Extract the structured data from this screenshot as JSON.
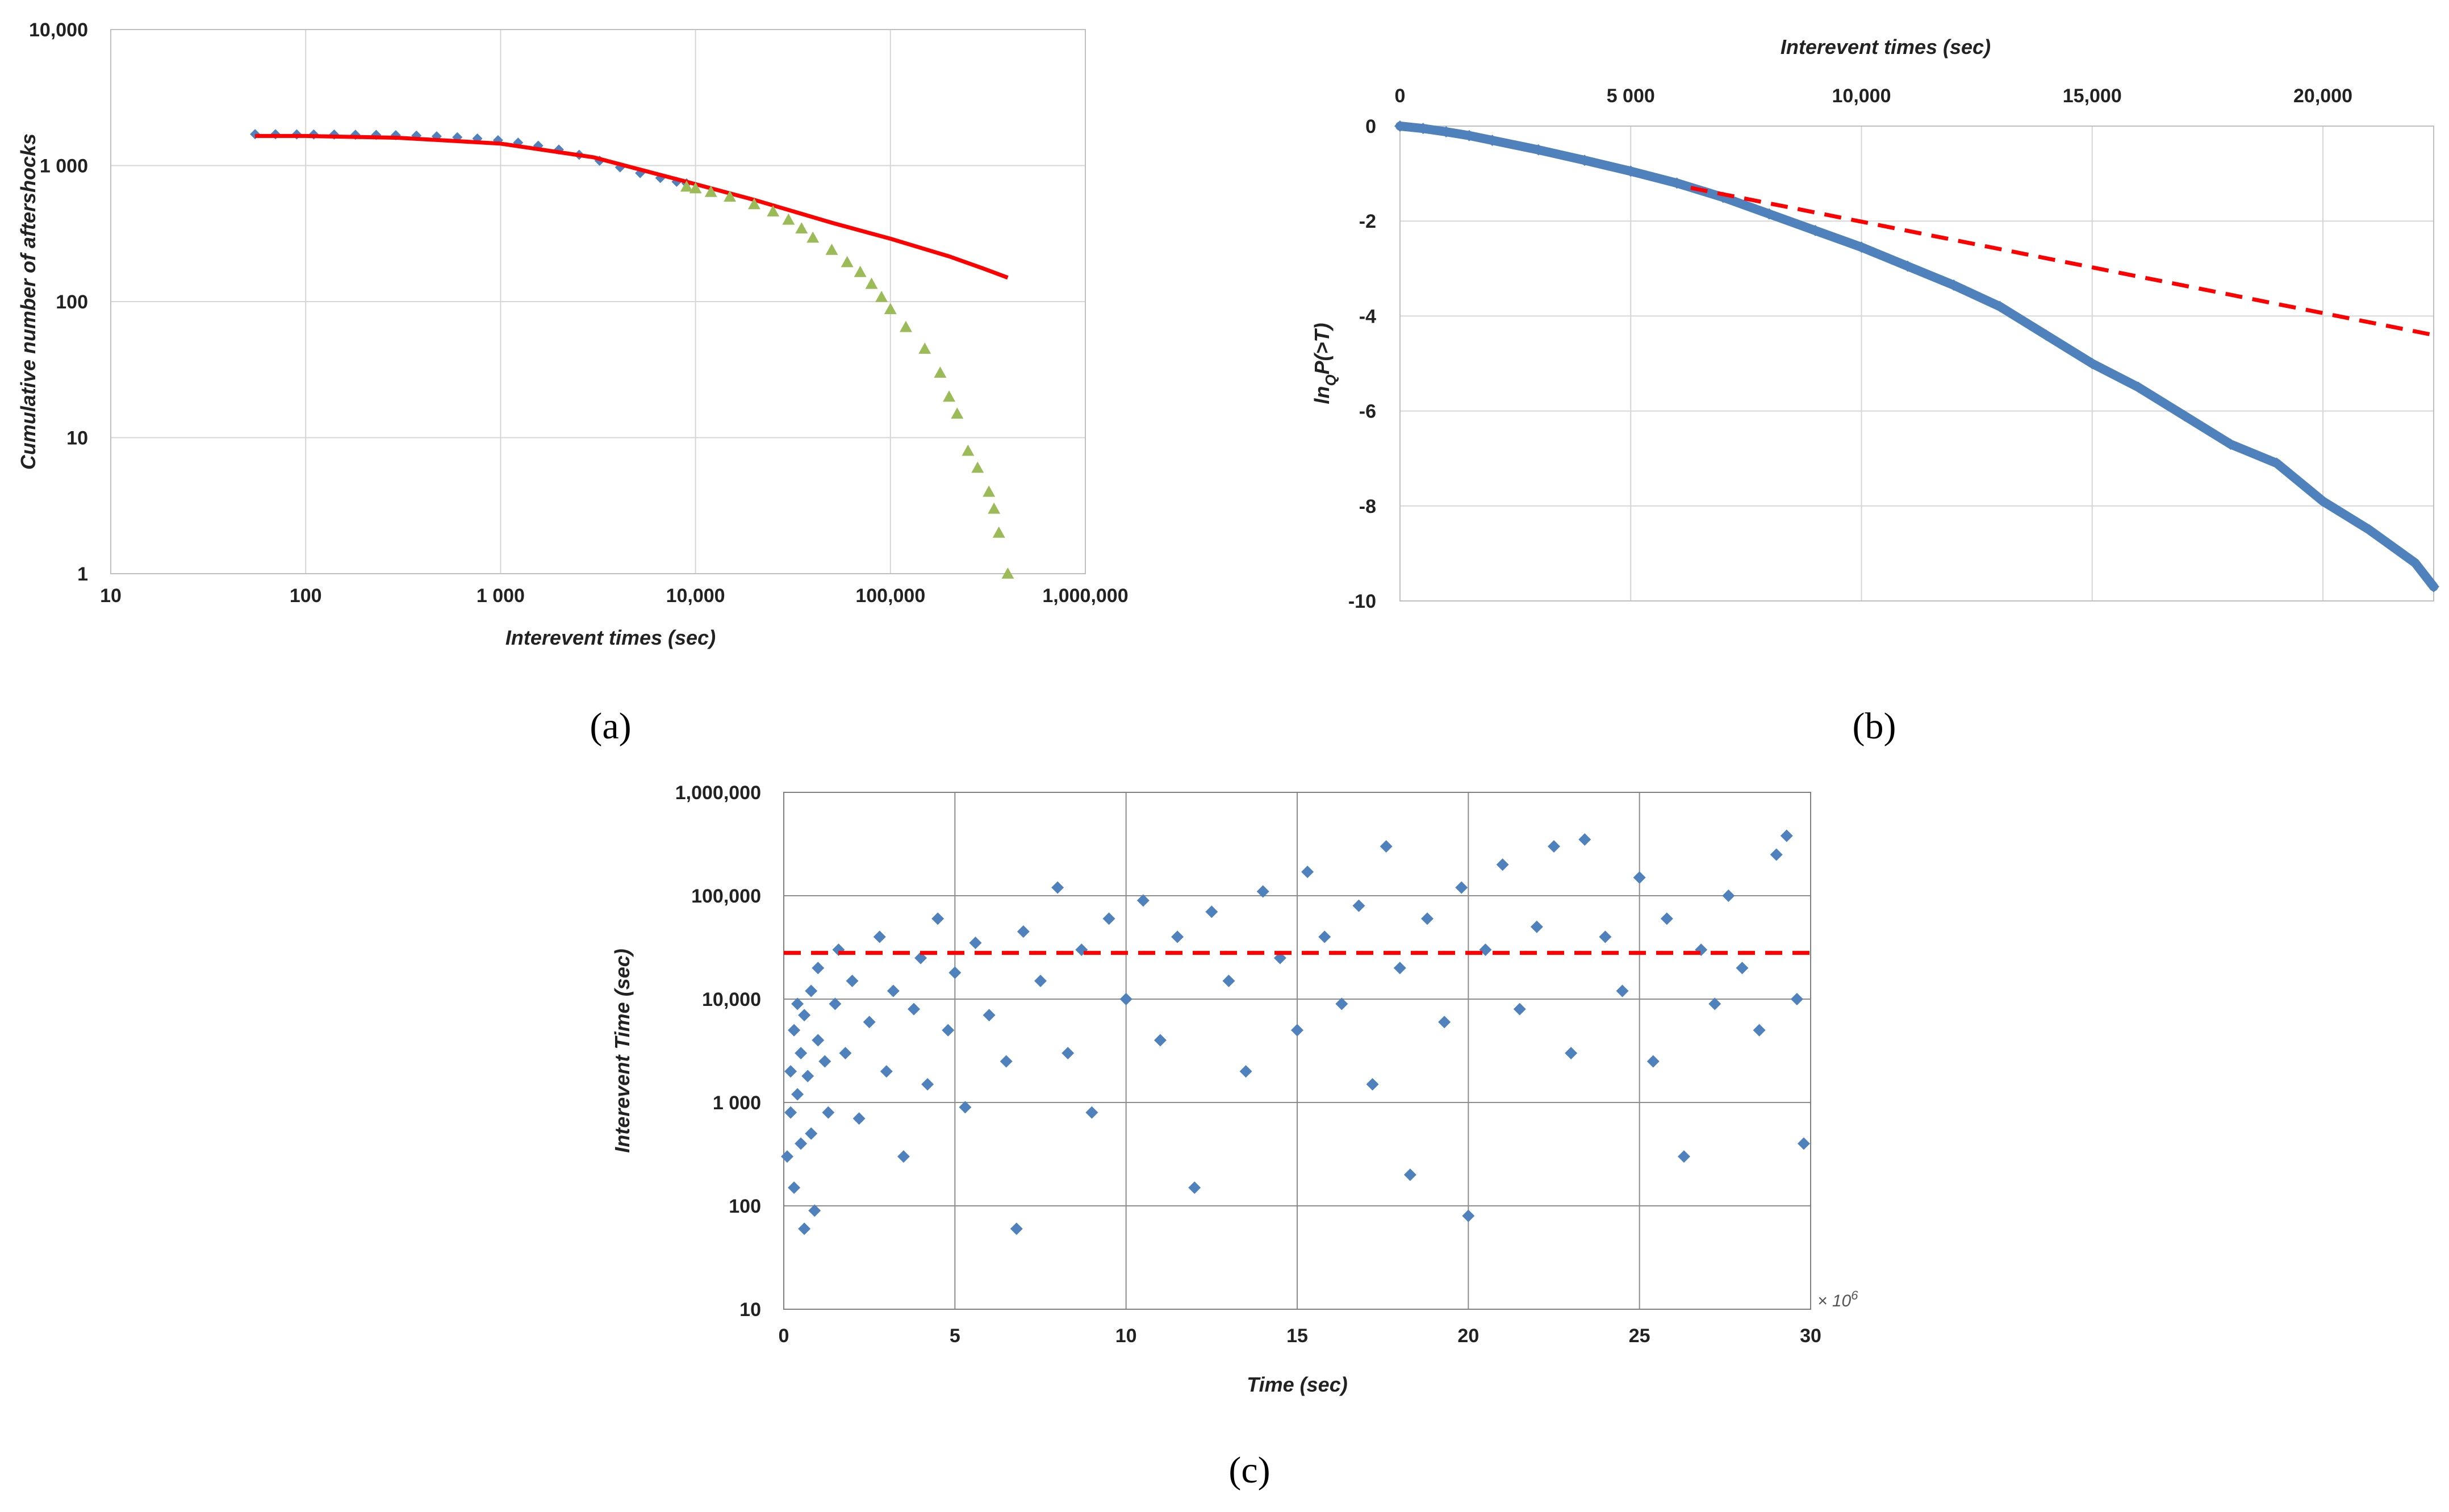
{
  "colors": {
    "blue": "#4f81bd",
    "red": "#ff0000",
    "green": "#9bbb59",
    "background": "#ffffff"
  },
  "chart_data": [
    {
      "id": "a",
      "panel_label": "(a)",
      "type": "scatter",
      "xlabel": "Interevent times (sec)",
      "ylabel": "Cumulative number of aftershocks",
      "x_scale": "log",
      "y_scale": "log",
      "xlim": [
        10,
        1000000
      ],
      "ylim": [
        1,
        10000
      ],
      "x_ticks": [
        "10",
        "100",
        "1 000",
        "10,000",
        "100,000",
        "1,000,000"
      ],
      "y_ticks": [
        "1",
        "10",
        "100",
        "1 000",
        "10,000"
      ],
      "grid": true,
      "legend": "none",
      "series": [
        {
          "marker": "diamond",
          "color": "#4f81bd",
          "points": [
            [
              55,
              1700
            ],
            [
              70,
              1698
            ],
            [
              90,
              1695
            ],
            [
              110,
              1693
            ],
            [
              140,
              1690
            ],
            [
              180,
              1685
            ],
            [
              230,
              1680
            ],
            [
              290,
              1672
            ],
            [
              370,
              1660
            ],
            [
              470,
              1640
            ],
            [
              600,
              1615
            ],
            [
              760,
              1580
            ],
            [
              970,
              1535
            ],
            [
              1230,
              1475
            ],
            [
              1560,
              1400
            ],
            [
              1990,
              1310
            ],
            [
              2530,
              1200
            ],
            [
              3220,
              1085
            ],
            [
              4100,
              970
            ],
            [
              5200,
              880
            ],
            [
              6600,
              810
            ],
            [
              8000,
              760
            ],
            [
              9000,
              740
            ]
          ]
        },
        {
          "marker": "line",
          "color": "#ff0000",
          "points": [
            [
              55,
              1650
            ],
            [
              100,
              1650
            ],
            [
              300,
              1600
            ],
            [
              1000,
              1450
            ],
            [
              3000,
              1150
            ],
            [
              9000,
              760
            ],
            [
              20000,
              560
            ],
            [
              50000,
              380
            ],
            [
              100000,
              290
            ],
            [
              200000,
              215
            ],
            [
              300000,
              175
            ],
            [
              400000,
              150
            ]
          ]
        },
        {
          "marker": "triangle",
          "color": "#9bbb59",
          "points": [
            [
              9000,
              700
            ],
            [
              10000,
              680
            ],
            [
              12000,
              640
            ],
            [
              15000,
              590
            ],
            [
              20000,
              520
            ],
            [
              25000,
              460
            ],
            [
              30000,
              400
            ],
            [
              35000,
              345
            ],
            [
              40000,
              295
            ],
            [
              50000,
              240
            ],
            [
              60000,
              195
            ],
            [
              70000,
              165
            ],
            [
              80000,
              135
            ],
            [
              90000,
              108
            ],
            [
              100000,
              88
            ],
            [
              120000,
              65
            ],
            [
              150000,
              45
            ],
            [
              180000,
              30
            ],
            [
              200000,
              20
            ],
            [
              220000,
              15
            ],
            [
              250000,
              8
            ],
            [
              280000,
              6
            ],
            [
              320000,
              4
            ],
            [
              340000,
              3
            ],
            [
              360000,
              2
            ],
            [
              400000,
              1
            ]
          ]
        }
      ]
    },
    {
      "id": "b",
      "panel_label": "(b)",
      "type": "scatter",
      "xlabel": "Interevent times (sec)",
      "ylabel": "lnQP(>T)",
      "ylabel_main": "ln",
      "ylabel_sub": "Q",
      "ylabel_rest": "P(>T)",
      "x_axis_position": "top",
      "xlim": [
        0,
        22400
      ],
      "ylim": [
        -10,
        0
      ],
      "x_ticks": [
        {
          "value": 0,
          "label": "0"
        },
        {
          "value": 5000,
          "label": "5 000"
        },
        {
          "value": 10000,
          "label": "10,000"
        },
        {
          "value": 15000,
          "label": "15,000"
        },
        {
          "value": 20000,
          "label": "20,000"
        }
      ],
      "y_ticks": [
        {
          "value": 0,
          "label": "0"
        },
        {
          "value": -2,
          "label": "-2"
        },
        {
          "value": -4,
          "label": "-4"
        },
        {
          "value": -6,
          "label": "-6"
        },
        {
          "value": -8,
          "label": "-8"
        },
        {
          "value": -10,
          "label": "-10"
        }
      ],
      "grid": true,
      "legend": "none",
      "series": [
        {
          "marker": "diamond",
          "color": "#4f81bd",
          "points": [
            [
              0,
              0
            ],
            [
              500,
              -0.05
            ],
            [
              1000,
              -0.12
            ],
            [
              1500,
              -0.2
            ],
            [
              2000,
              -0.3
            ],
            [
              3000,
              -0.5
            ],
            [
              4000,
              -0.72
            ],
            [
              5000,
              -0.95
            ],
            [
              6000,
              -1.2
            ],
            [
              7000,
              -1.5
            ],
            [
              8000,
              -1.85
            ],
            [
              9000,
              -2.2
            ],
            [
              10000,
              -2.55
            ],
            [
              11000,
              -2.95
            ],
            [
              12000,
              -3.35
            ],
            [
              13000,
              -3.8
            ],
            [
              14000,
              -4.4
            ],
            [
              15000,
              -5.0
            ],
            [
              16000,
              -5.5
            ],
            [
              17000,
              -6.1
            ],
            [
              18000,
              -6.7
            ],
            [
              19000,
              -7.1
            ],
            [
              20000,
              -7.9
            ],
            [
              21000,
              -8.5
            ],
            [
              22000,
              -9.2
            ],
            [
              22400,
              -9.7
            ]
          ]
        },
        {
          "marker": "dashed-line",
          "color": "#ff0000",
          "points": [
            [
              6300,
              -1.3
            ],
            [
              22400,
              -4.4
            ]
          ]
        }
      ]
    },
    {
      "id": "c",
      "panel_label": "(c)",
      "type": "scatter",
      "xlabel": "Time (sec)",
      "ylabel": "Interevent Time (sec)",
      "x_multiplier": "× 10",
      "x_multiplier_exp": "6",
      "x_scale": "linear",
      "y_scale": "log",
      "xlim": [
        0,
        30
      ],
      "ylim": [
        10,
        1000000
      ],
      "x_ticks": [
        "0",
        "5",
        "10",
        "15",
        "20",
        "25",
        "30"
      ],
      "y_ticks": [
        "10",
        "100",
        "1 000",
        "10,000",
        "100,000",
        "1,000,000"
      ],
      "grid": true,
      "legend": "none",
      "threshold_line": {
        "y": 28000,
        "style": "dashed",
        "color": "#ff0000"
      },
      "series": [
        {
          "marker": "diamond",
          "color": "#4f81bd",
          "points": [
            [
              0.1,
              300
            ],
            [
              0.2,
              800
            ],
            [
              0.2,
              2000
            ],
            [
              0.3,
              5000
            ],
            [
              0.3,
              150
            ],
            [
              0.4,
              1200
            ],
            [
              0.4,
              9000
            ],
            [
              0.5,
              3000
            ],
            [
              0.5,
              400
            ],
            [
              0.6,
              60
            ],
            [
              0.6,
              7000
            ],
            [
              0.7,
              1800
            ],
            [
              0.8,
              12000
            ],
            [
              0.8,
              500
            ],
            [
              0.9,
              90
            ],
            [
              1.0,
              4000
            ],
            [
              1.0,
              20000
            ],
            [
              1.2,
              2500
            ],
            [
              1.3,
              800
            ],
            [
              1.5,
              9000
            ],
            [
              1.6,
              30000
            ],
            [
              1.8,
              3000
            ],
            [
              2.0,
              15000
            ],
            [
              2.2,
              700
            ],
            [
              2.5,
              6000
            ],
            [
              2.8,
              40000
            ],
            [
              3.0,
              2000
            ],
            [
              3.2,
              12000
            ],
            [
              3.5,
              300
            ],
            [
              3.8,
              8000
            ],
            [
              4.0,
              25000
            ],
            [
              4.2,
              1500
            ],
            [
              4.5,
              60000
            ],
            [
              4.8,
              5000
            ],
            [
              5.0,
              18000
            ],
            [
              5.3,
              900
            ],
            [
              5.6,
              35000
            ],
            [
              6.0,
              7000
            ],
            [
              6.5,
              2500
            ],
            [
              6.8,
              60
            ],
            [
              7.0,
              45000
            ],
            [
              7.5,
              15000
            ],
            [
              8.0,
              120000
            ],
            [
              8.3,
              3000
            ],
            [
              8.7,
              30000
            ],
            [
              9.0,
              800
            ],
            [
              9.5,
              60000
            ],
            [
              10.0,
              10000
            ],
            [
              10.5,
              90000
            ],
            [
              11.0,
              4000
            ],
            [
              11.5,
              40000
            ],
            [
              12.0,
              150
            ],
            [
              12.5,
              70000
            ],
            [
              13.0,
              15000
            ],
            [
              13.5,
              2000
            ],
            [
              14.0,
              110000
            ],
            [
              14.5,
              25000
            ],
            [
              15.0,
              5000
            ],
            [
              15.3,
              170000
            ],
            [
              15.8,
              40000
            ],
            [
              16.3,
              9000
            ],
            [
              16.8,
              80000
            ],
            [
              17.2,
              1500
            ],
            [
              17.6,
              300000
            ],
            [
              18.0,
              20000
            ],
            [
              18.3,
              200
            ],
            [
              18.8,
              60000
            ],
            [
              19.3,
              6000
            ],
            [
              19.8,
              120000
            ],
            [
              20.0,
              80
            ],
            [
              20.5,
              30000
            ],
            [
              21.0,
              200000
            ],
            [
              21.5,
              8000
            ],
            [
              22.0,
              50000
            ],
            [
              22.5,
              300000
            ],
            [
              23.0,
              3000
            ],
            [
              23.4,
              350000
            ],
            [
              24.0,
              40000
            ],
            [
              24.5,
              12000
            ],
            [
              25.0,
              150000
            ],
            [
              25.4,
              2500
            ],
            [
              25.8,
              60000
            ],
            [
              26.3,
              300
            ],
            [
              26.8,
              30000
            ],
            [
              27.2,
              9000
            ],
            [
              27.6,
              100000
            ],
            [
              28.0,
              20000
            ],
            [
              28.5,
              5000
            ],
            [
              29.0,
              250000
            ],
            [
              29.3,
              380000
            ],
            [
              29.6,
              10000
            ],
            [
              29.8,
              400
            ]
          ]
        }
      ]
    }
  ]
}
